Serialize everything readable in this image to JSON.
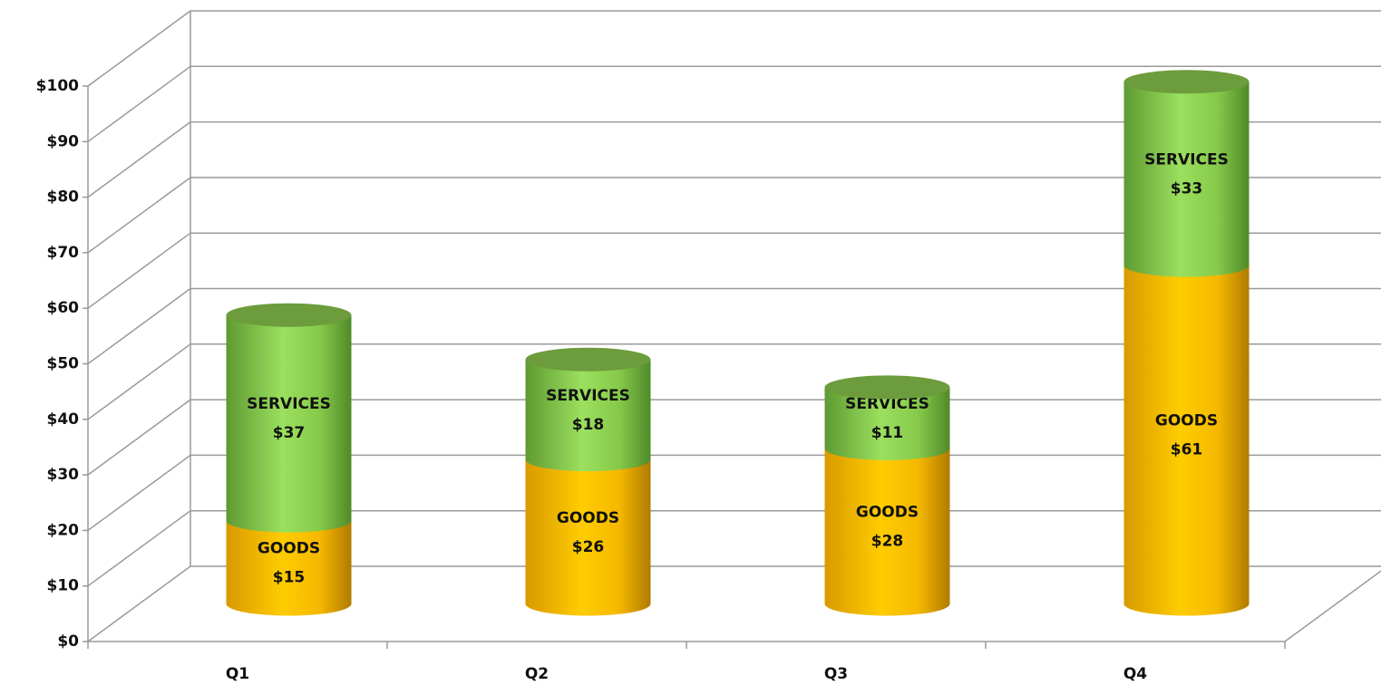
{
  "chart_data": {
    "type": "bar3d",
    "stacked": true,
    "categories": [
      "Q1",
      "Q2",
      "Q3",
      "Q4"
    ],
    "series": [
      {
        "name": "GOODS",
        "color": "#ffc000",
        "values": [
          15,
          26,
          28,
          61
        ],
        "value_labels": [
          "$15",
          "$26",
          "$28",
          "$61"
        ]
      },
      {
        "name": "SERVICES",
        "color": "#92d050",
        "values": [
          37,
          18,
          11,
          33
        ],
        "value_labels": [
          "$37",
          "$18",
          "$11",
          "$33"
        ]
      }
    ],
    "ylim": [
      0,
      100
    ],
    "yticks": [
      {
        "value": 0,
        "label": "$0"
      },
      {
        "value": 10,
        "label": "$10"
      },
      {
        "value": 20,
        "label": "$20"
      },
      {
        "value": 30,
        "label": "$30"
      },
      {
        "value": 40,
        "label": "$40"
      },
      {
        "value": 50,
        "label": "$50"
      },
      {
        "value": 60,
        "label": "$60"
      },
      {
        "value": 70,
        "label": "$70"
      },
      {
        "value": 80,
        "label": "$80"
      },
      {
        "value": 90,
        "label": "$90"
      },
      {
        "value": 100,
        "label": "$100"
      }
    ],
    "grid": true
  }
}
